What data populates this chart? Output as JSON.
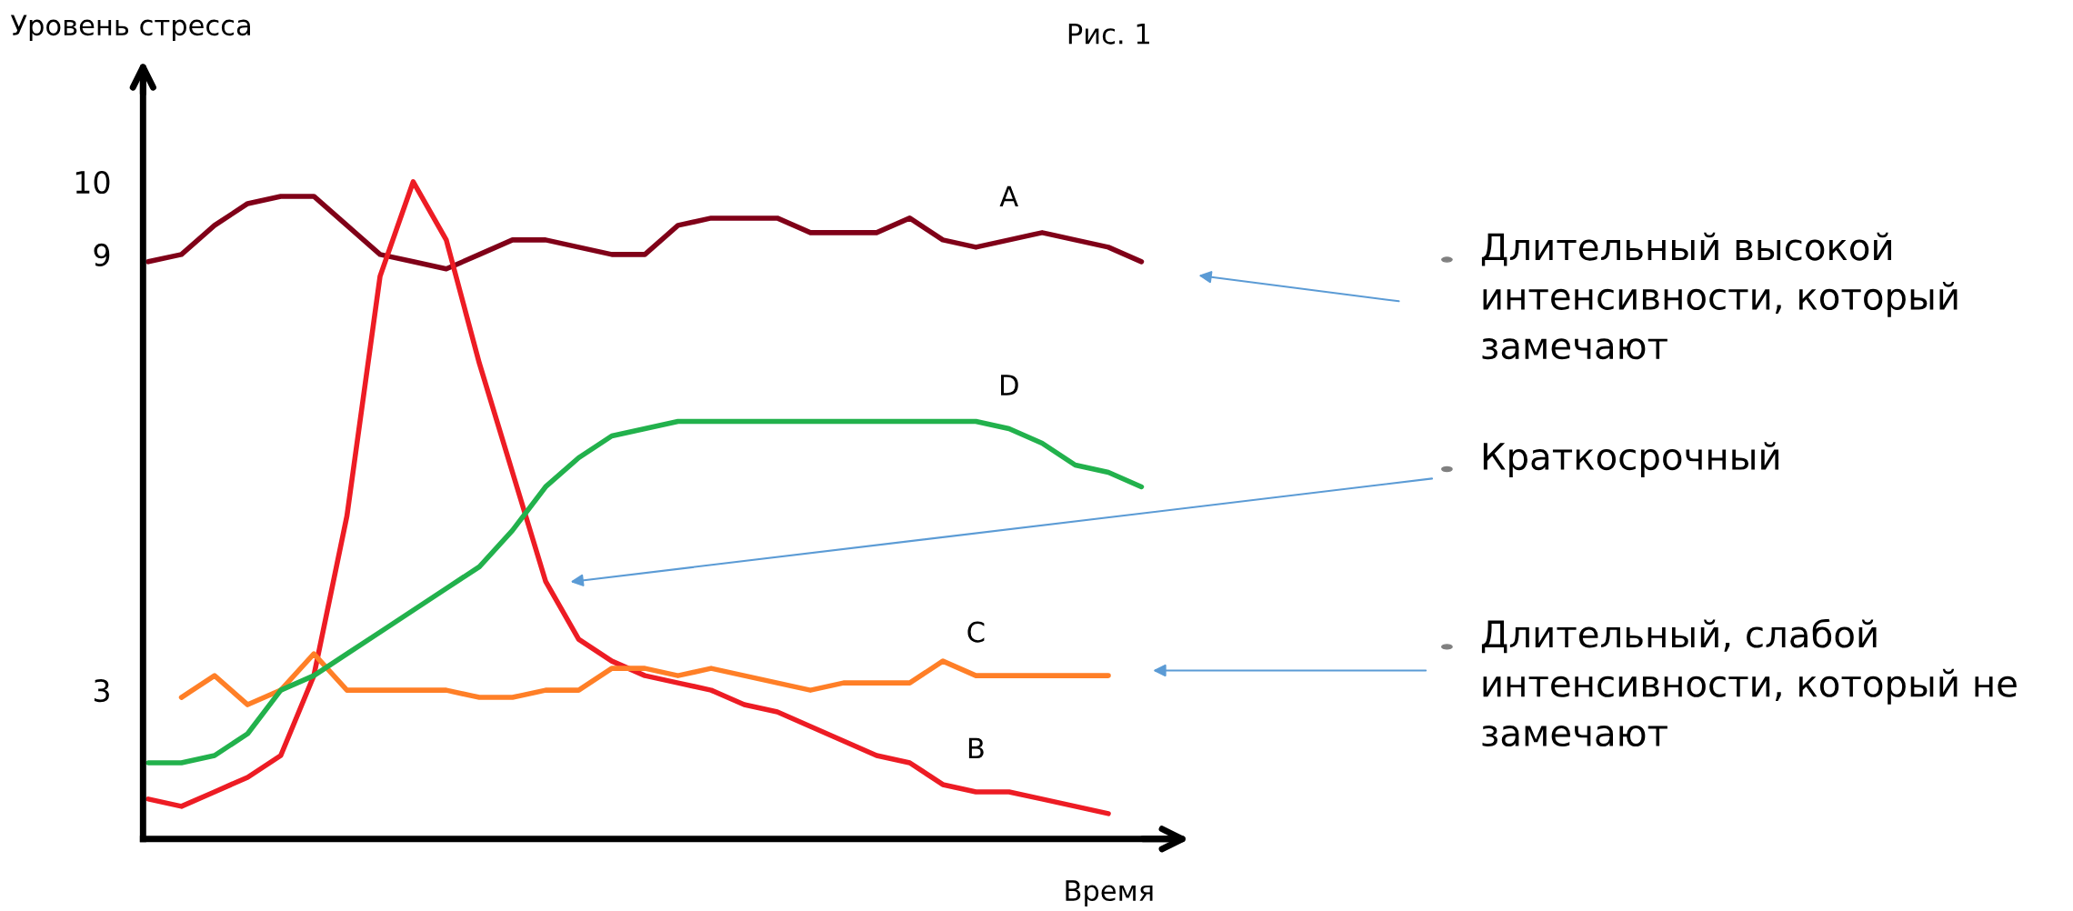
{
  "chart_data": {
    "type": "line",
    "title": "Рис. 1",
    "ylabel": "Уровень стресса",
    "xlabel": "Время",
    "categories": [
      null,
      null,
      null,
      null,
      null,
      null,
      null,
      null,
      null,
      null,
      null,
      null,
      null,
      null,
      null,
      null,
      null,
      null,
      null,
      null,
      null,
      null,
      null,
      null,
      null,
      null,
      null,
      null,
      null,
      null,
      null
    ],
    "series": [
      {
        "name": "A",
        "color": "#800018",
        "values": [
          8.9,
          9.0,
          9.4,
          9.7,
          9.8,
          9.8,
          9.4,
          9.0,
          8.9,
          8.8,
          9.0,
          9.2,
          9.2,
          9.1,
          9.0,
          9.0,
          9.4,
          9.5,
          9.5,
          9.5,
          9.3,
          9.3,
          9.3,
          9.5,
          9.2,
          9.1,
          9.2,
          9.3,
          9.2,
          9.1,
          8.9
        ]
      },
      {
        "name": "B",
        "color": "#ed1c24",
        "values": [
          1.5,
          1.4,
          1.6,
          1.8,
          2.1,
          3.2,
          5.4,
          8.7,
          10,
          9.2,
          7.5,
          6.0,
          4.5,
          3.7,
          3.4,
          3.2,
          3.1,
          3.0,
          2.8,
          2.7,
          2.5,
          2.3,
          2.1,
          2.0,
          1.7,
          1.6,
          1.6,
          1.5,
          1.4,
          1.3,
          null
        ]
      },
      {
        "name": "C",
        "color": "#ff7f27",
        "values": [
          null,
          2.9,
          3.2,
          2.8,
          3.0,
          3.5,
          3.0,
          3.0,
          3.0,
          3.0,
          2.9,
          2.9,
          3.0,
          3.0,
          3.3,
          3.3,
          3.2,
          3.3,
          3.2,
          3.1,
          3.0,
          3.1,
          3.1,
          3.1,
          3.4,
          3.2,
          3.2,
          3.2,
          3.2,
          3.2,
          null
        ]
      },
      {
        "name": "D",
        "color": "#22b14c",
        "values": [
          2.0,
          2.0,
          2.1,
          2.4,
          3.0,
          3.2,
          3.5,
          3.8,
          4.1,
          4.4,
          4.7,
          5.2,
          5.8,
          6.2,
          6.5,
          6.6,
          6.7,
          6.7,
          6.7,
          6.7,
          6.7,
          6.7,
          6.7,
          6.7,
          6.7,
          6.7,
          6.6,
          6.4,
          6.1,
          6.0,
          5.8
        ]
      }
    ],
    "ylim": [
      0.95,
      11.5
    ],
    "yticks": [
      3,
      9,
      10
    ],
    "grid": false,
    "legend": false,
    "marker": "none",
    "line_style": "solid",
    "tick_labels": "y",
    "annotations": [
      "Длительный высокой интенсивности, который замечают",
      "Краткосрочный",
      "Длительный, слабой интенсивности, который не замечают"
    ]
  }
}
